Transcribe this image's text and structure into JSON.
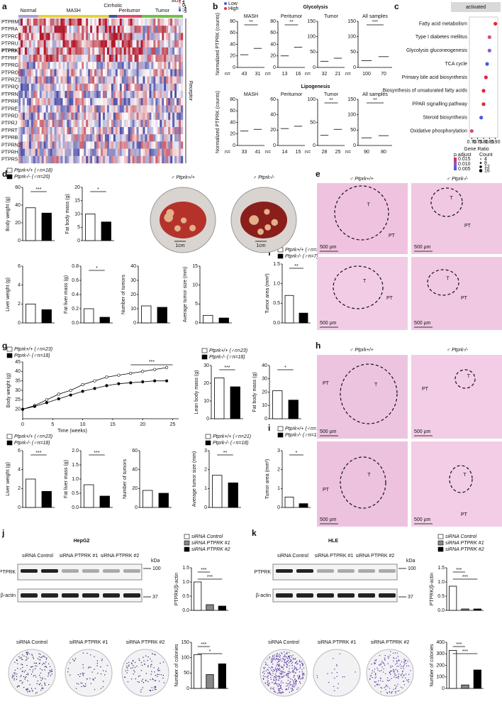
{
  "panel_letters": [
    "a",
    "b",
    "c",
    "d",
    "e",
    "f",
    "g",
    "h",
    "i",
    "j",
    "k"
  ],
  "panel_b": {
    "titles": [
      "Glycolysis",
      "Lipogenesis"
    ],
    "ylabel": "Normalized PTPRK (counts)",
    "legend": [
      "Low",
      "High"
    ],
    "n_prefix": "n="
  },
  "panel_c": {
    "title": "activated",
    "xlabel": "Gene Ratio",
    "color_title": "p.adjust",
    "color_ticks": [
      "0.015",
      "0.010",
      "0.005"
    ],
    "size_title": "Count",
    "size_ticks": [
      4,
      8,
      12,
      16
    ]
  },
  "legends": {
    "d": [
      "Ptprk+/+ (♂n=18)",
      "Ptprk-/- (♂n=20)"
    ],
    "f": [
      "Ptprk+/+ (♂n=5)",
      "Ptprk-/- (♂n=7)"
    ],
    "g": [
      "Ptprk+/+ (♂n=23)",
      "Ptprk-/- (♂n=18)"
    ],
    "g_size": [
      "Ptprk+/+ (♂n=21)",
      "Ptprk-/- (♂n=18)"
    ],
    "i": [
      "Ptprk+/+ (♂n=19)",
      "Ptprk-/- (♂n=15)"
    ],
    "sirna": [
      "siRNA Control",
      "siRNA PTPRK #1",
      "siRNA PTPRK #2"
    ]
  },
  "photos": {
    "genotypes": [
      "♂ Ptprk+/+",
      "♂ Ptprk-/-"
    ],
    "scale": "1cm"
  },
  "histology": {
    "tumor": "T",
    "peritumor": "PT",
    "scale": "500 µm"
  },
  "blots": {
    "cells": [
      "HepG2",
      "HLE"
    ],
    "lanes": [
      "siRNA Control",
      "siRNA PTPRK #1",
      "siRNA PTPRK #2"
    ],
    "proteins": [
      "PTPRK",
      "β-actin"
    ],
    "unit": "kDa",
    "markers": [
      100,
      37
    ]
  },
  "chart_data": [
    {
      "type": "heatmap",
      "groups": [
        "Normal",
        "MASH",
        "Cirrhotic",
        "Peritumor",
        "Tumor"
      ],
      "group_colors": [
        "#a9a0d8",
        "#e8d23a",
        "#3a55a8",
        "#e04a6a",
        "#6cc24a"
      ],
      "rows": [
        "PTPRM",
        "PTPRA",
        "PTPRC",
        "PTPRU",
        "PTPRK",
        "PTPRF",
        "PTPRG",
        "PTPRO",
        "PTPRZ1",
        "PTPRQ",
        "PTPRN",
        "PTPRR",
        "PTPRE",
        "PTPRD",
        "PTPRJ",
        "PTPRT",
        "PTPRB",
        "PTPRN2",
        "PTPRH",
        "PTPRS"
      ],
      "legend_title": "AU",
      "scale_ticks": [
        3,
        2,
        1,
        0,
        -1,
        -2,
        -3
      ],
      "side_label": "Receptor"
    },
    {
      "type": "strip",
      "name": "MASH",
      "n": [
        43,
        31
      ],
      "values": [
        22,
        33
      ],
      "colors": [
        "#4a5bd4",
        "#e0394a"
      ],
      "ylim": [
        0,
        80
      ],
      "yticks": [
        0,
        20,
        40,
        60,
        80
      ],
      "sig": [
        "**"
      ]
    },
    {
      "type": "strip",
      "name": "Peritumor",
      "n": [
        13,
        16
      ],
      "values": [
        20,
        35
      ],
      "colors": [
        "#4a5bd4",
        "#e0394a"
      ],
      "ylim": [
        0,
        80
      ],
      "yticks": [
        0,
        20,
        40,
        60,
        80
      ],
      "sig": [
        "**"
      ]
    },
    {
      "type": "strip",
      "name": "Tumor",
      "n": [
        32,
        21
      ],
      "values": [
        20,
        30
      ],
      "colors": [
        "#4a5bd4",
        "#e0394a"
      ],
      "ylim": [
        0,
        150
      ],
      "yticks": [
        0,
        50,
        100,
        150
      ]
    },
    {
      "type": "strip",
      "name": "All samples",
      "n": [
        100,
        70
      ],
      "values": [
        22,
        35
      ],
      "colors": [
        "#4a5bd4",
        "#e0394a"
      ],
      "ylim": [
        0,
        150
      ],
      "yticks": [
        0,
        50,
        100,
        150
      ],
      "sig": [
        "***"
      ]
    },
    {
      "type": "strip",
      "name": "MASH",
      "n": [
        33,
        41
      ],
      "values": [
        25,
        28
      ],
      "colors": [
        "#4a5bd4",
        "#e0394a"
      ],
      "ylim": [
        0,
        80
      ],
      "yticks": [
        0,
        20,
        40,
        60,
        80
      ]
    },
    {
      "type": "strip",
      "name": "Peritumor",
      "n": [
        14,
        15
      ],
      "values": [
        22,
        25
      ],
      "colors": [
        "#4a5bd4",
        "#e0394a"
      ],
      "ylim": [
        0,
        60
      ],
      "yticks": [
        0,
        20,
        40,
        60
      ]
    },
    {
      "type": "strip",
      "name": "Tumor",
      "n": [
        28,
        25
      ],
      "values": [
        22,
        35
      ],
      "colors": [
        "#4a5bd4",
        "#e0394a"
      ],
      "ylim": [
        0,
        100
      ],
      "yticks": [
        0,
        50,
        100
      ],
      "sig": [
        "**"
      ]
    },
    {
      "type": "strip",
      "name": "All samples",
      "n": [
        90,
        80
      ],
      "values": [
        25,
        32
      ],
      "colors": [
        "#4a5bd4",
        "#e0394a"
      ],
      "ylim": [
        0,
        150
      ],
      "yticks": [
        0,
        50,
        100,
        150
      ],
      "sig": [
        "**"
      ]
    },
    {
      "type": "dot",
      "categories": [
        "Fatty acid metabolism",
        "Type I diabetes mellitus",
        "Glycolysis gluconeogenesis",
        "TCA cycle",
        "Primary bile acid biosynthesis",
        "Biosynthesis of unsaturated fatty acids",
        "PPAR signalling pathway",
        "Steroid biosynthesis",
        "Oxidative phosphorylation"
      ],
      "values": [
        0.9,
        0.85,
        0.85,
        0.83,
        0.82,
        0.8,
        0.8,
        0.78,
        0.7
      ],
      "colors": [
        "#e8233a",
        "#d04a8a",
        "#8a5ad0",
        "#4a5ad8",
        "#e8233a",
        "#e8233a",
        "#e8233a",
        "#4a5ad8",
        "#d04a8a"
      ],
      "xlim": [
        0.68,
        0.92
      ],
      "xticks": [
        {
          "value": 0.7,
          "label": "0.70"
        },
        {
          "value": 0.75,
          "label": "0.75"
        },
        {
          "value": 0.8,
          "label": "0.80"
        },
        {
          "value": 0.85,
          "label": "0.85"
        },
        {
          "value": 0.9,
          "label": "0.90"
        }
      ]
    },
    {
      "type": "bar",
      "ylabel": "Body weight (g)",
      "values": [
        37,
        31
      ],
      "colors": [
        "#fff",
        "#000"
      ],
      "ylim": [
        0,
        60
      ],
      "yticks": [
        0,
        20,
        40,
        60
      ],
      "sig": [
        "***"
      ]
    },
    {
      "type": "bar",
      "ylabel": "Fat body mass (g)",
      "values": [
        10,
        7
      ],
      "colors": [
        "#fff",
        "#000"
      ],
      "ylim": [
        0,
        20
      ],
      "yticks": [
        0,
        5,
        10,
        15,
        20
      ],
      "sig": [
        "*"
      ]
    },
    {
      "type": "bar",
      "ylabel": "Liver weight (g)",
      "values": [
        2,
        1.4
      ],
      "colors": [
        "#fff",
        "#000"
      ],
      "ylim": [
        0,
        6
      ],
      "yticks": [
        0,
        2,
        4,
        6
      ]
    },
    {
      "type": "bar",
      "ylabel": "Fat liver mass (g)",
      "values": [
        0.2,
        0.08
      ],
      "colors": [
        "#fff",
        "#000"
      ],
      "ylim": [
        0,
        0.8
      ],
      "yticks": [
        {
          "value": 0,
          "label": "0.0"
        },
        0.2,
        0.4,
        0.6,
        0.8
      ],
      "sig": [
        "*"
      ]
    },
    {
      "type": "bar",
      "ylabel": "Number of tumors",
      "values": [
        12,
        11
      ],
      "colors": [
        "#fff",
        "#000"
      ],
      "ylim": [
        0,
        40
      ],
      "yticks": [
        0,
        10,
        20,
        30,
        40
      ]
    },
    {
      "type": "bar",
      "ylabel": "Average tumor size (mm)",
      "values": [
        2,
        1.3
      ],
      "colors": [
        "#fff",
        "#000"
      ],
      "ylim": [
        0,
        15
      ],
      "yticks": [
        0,
        5,
        10,
        15
      ]
    },
    {
      "type": "bar",
      "ylabel": "Tumor area (mm²)",
      "values": [
        0.7,
        0.25
      ],
      "colors": [
        "#fff",
        "#000"
      ],
      "ylim": [
        0,
        1.5
      ],
      "yticks": [
        {
          "value": 0,
          "label": "0.0"
        },
        0.5,
        {
          "value": 1,
          "label": "1.0"
        },
        1.5
      ],
      "sig": [
        "**"
      ]
    },
    {
      "type": "line",
      "ylabel": "Body weight (g)",
      "xlabel": "Time (weeks)",
      "x": [
        0,
        2,
        4,
        6,
        8,
        10,
        12,
        14,
        16,
        18,
        20,
        22,
        24
      ],
      "series": [
        {
          "name": "Ptprk+/+ (♂n=23)",
          "color": "#fff",
          "values": [
            20,
            22,
            25,
            28,
            30,
            33,
            35,
            37,
            38,
            39,
            40,
            41,
            42
          ]
        },
        {
          "name": "Ptprk-/- (♂n=18)",
          "color": "#000",
          "values": [
            20,
            21.5,
            23.5,
            25.5,
            27.5,
            29.5,
            31,
            32.5,
            33.5,
            34,
            34.5,
            35,
            35
          ]
        }
      ],
      "xlim": [
        0,
        26
      ],
      "xticks": [
        0,
        5,
        10,
        15,
        20,
        25
      ],
      "ylim": [
        15,
        45
      ],
      "yticks": [
        20,
        25,
        30,
        35,
        40,
        45
      ],
      "sig": [
        "***"
      ]
    },
    {
      "type": "bar",
      "ylabel": "Lean body mass (g)",
      "values": [
        23,
        18
      ],
      "colors": [
        "#fff",
        "#000"
      ],
      "ylim": [
        0,
        30
      ],
      "yticks": [
        0,
        10,
        20,
        30
      ],
      "sig": [
        "***"
      ]
    },
    {
      "type": "bar",
      "ylabel": "Fat body mass (g)",
      "values": [
        21,
        14
      ],
      "colors": [
        "#fff",
        "#000"
      ],
      "ylim": [
        0,
        40
      ],
      "yticks": [
        0,
        10,
        20,
        30,
        40
      ],
      "sig": [
        "*"
      ]
    },
    {
      "type": "bar",
      "ylabel": "Liver weight (g)",
      "values": [
        3,
        1.7
      ],
      "colors": [
        "#fff",
        "#000"
      ],
      "ylim": [
        0,
        6
      ],
      "yticks": [
        0,
        2,
        4,
        6
      ],
      "sig": [
        "***"
      ]
    },
    {
      "type": "bar",
      "ylabel": "Fat liver mass (g)",
      "values": [
        0.8,
        0.4
      ],
      "colors": [
        "#fff",
        "#000"
      ],
      "ylim": [
        0,
        2
      ],
      "yticks": [
        {
          "value": 0,
          "label": "0.0"
        },
        0.5,
        {
          "value": 1,
          "label": "1.0"
        },
        1.5,
        {
          "value": 2,
          "label": "2.0"
        }
      ],
      "sig": [
        "***"
      ]
    },
    {
      "type": "bar",
      "ylabel": "Number of tumors",
      "values": [
        18,
        15
      ],
      "colors": [
        "#fff",
        "#000"
      ],
      "ylim": [
        0,
        60
      ],
      "yticks": [
        0,
        20,
        40,
        60
      ]
    },
    {
      "type": "bar",
      "ylabel": "Average tumor size (mm)",
      "values": [
        1.7,
        1.3
      ],
      "colors": [
        "#fff",
        "#000"
      ],
      "ylim": [
        0,
        3
      ],
      "yticks": [
        0,
        1,
        2,
        3
      ],
      "sig": [
        "**"
      ]
    },
    {
      "type": "bar",
      "ylabel": "Tumor area (mm²)",
      "values": [
        0.55,
        0.2
      ],
      "colors": [
        "#fff",
        "#000"
      ],
      "ylim": [
        0,
        3
      ],
      "yticks": [
        0,
        1,
        2,
        3
      ],
      "sig": [
        "*"
      ]
    },
    {
      "type": "bar",
      "ylabel": "PTPRK/β-actin",
      "values": [
        1,
        0.2,
        0.15
      ],
      "colors": [
        "#fff",
        "#888",
        "#000"
      ],
      "ylim": [
        0,
        1.5
      ],
      "yticks": [
        {
          "value": 0,
          "label": "0.0"
        },
        0.5,
        {
          "value": 1,
          "label": "1.0"
        },
        1.5
      ],
      "sig": [
        "***",
        "***"
      ]
    },
    {
      "type": "bar",
      "ylabel": "Number of colonies",
      "values": [
        110,
        45,
        80
      ],
      "colors": [
        "#fff",
        "#888",
        "#000"
      ],
      "ylim": [
        0,
        150
      ],
      "yticks": [
        0,
        50,
        100,
        150
      ],
      "sig": [
        "***",
        "*"
      ]
    },
    {
      "type": "bar",
      "ylabel": "PTPRK/β-actin",
      "values": [
        0.85,
        0.05,
        0.05
      ],
      "colors": [
        "#fff",
        "#888",
        "#000"
      ],
      "ylim": [
        0,
        1.5
      ],
      "yticks": [
        {
          "value": 0,
          "label": "0.0"
        },
        0.5,
        {
          "value": 1,
          "label": "1.0"
        },
        1.5
      ],
      "sig": [
        "***",
        "***"
      ]
    },
    {
      "type": "bar",
      "ylabel": "Number of colonies",
      "values": [
        330,
        30,
        160
      ],
      "colors": [
        "#fff",
        "#888",
        "#000"
      ],
      "ylim": [
        0,
        400
      ],
      "yticks": [
        0,
        100,
        200,
        300,
        400
      ],
      "sig": [
        "***",
        "***"
      ]
    }
  ]
}
